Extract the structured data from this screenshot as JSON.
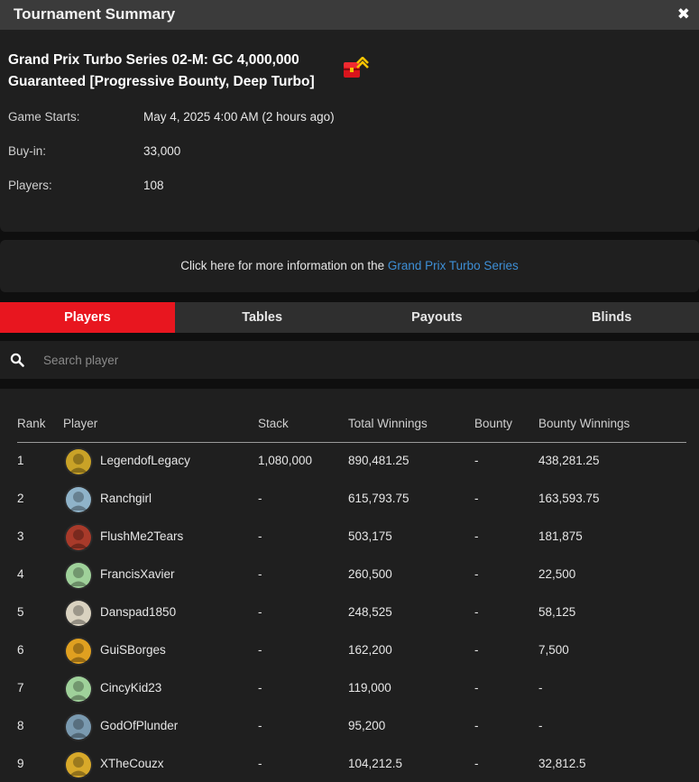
{
  "window": {
    "title": "Tournament Summary",
    "close_label": "✖"
  },
  "tournament": {
    "name": "Grand Prix Turbo Series 02-M: GC 4,000,000 Guaranteed [Progressive Bounty, Deep Turbo]",
    "info": [
      {
        "label": "Game Starts:",
        "value": "May 4, 2025 4:00 AM (2 hours ago)"
      },
      {
        "label": "Buy-in:",
        "value": "33,000"
      },
      {
        "label": "Players:",
        "value": "108"
      }
    ]
  },
  "more_info": {
    "text": "Click here for more information on the ",
    "link": "Grand Prix Turbo Series"
  },
  "tabs": [
    {
      "label": "Players",
      "active": true
    },
    {
      "label": "Tables",
      "active": false
    },
    {
      "label": "Payouts",
      "active": false
    },
    {
      "label": "Blinds",
      "active": false
    }
  ],
  "search": {
    "placeholder": "Search player",
    "value": ""
  },
  "table": {
    "headers": [
      "Rank",
      "Player",
      "Stack",
      "Total Winnings",
      "Bounty",
      "Bounty Winnings"
    ],
    "rows": [
      {
        "rank": "1",
        "player": "LegendofLegacy",
        "stack": "1,080,000",
        "total": "890,481.25",
        "bounty": "-",
        "bounty_winnings": "438,281.25",
        "avatar_color": "#c9a227"
      },
      {
        "rank": "2",
        "player": "Ranchgirl",
        "stack": "-",
        "total": "615,793.75",
        "bounty": "-",
        "bounty_winnings": "163,593.75",
        "avatar_color": "#8fb3c9"
      },
      {
        "rank": "3",
        "player": "FlushMe2Tears",
        "stack": "-",
        "total": "503,175",
        "bounty": "-",
        "bounty_winnings": "181,875",
        "avatar_color": "#a83a2a"
      },
      {
        "rank": "4",
        "player": "FrancisXavier",
        "stack": "-",
        "total": "260,500",
        "bounty": "-",
        "bounty_winnings": "22,500",
        "avatar_color": "#9fd19a"
      },
      {
        "rank": "5",
        "player": "Danspad1850",
        "stack": "-",
        "total": "248,525",
        "bounty": "-",
        "bounty_winnings": "58,125",
        "avatar_color": "#d9d2c0"
      },
      {
        "rank": "6",
        "player": "GuiSBorges",
        "stack": "-",
        "total": "162,200",
        "bounty": "-",
        "bounty_winnings": "7,500",
        "avatar_color": "#e0a020"
      },
      {
        "rank": "7",
        "player": "CincyKid23",
        "stack": "-",
        "total": "119,000",
        "bounty": "-",
        "bounty_winnings": "-",
        "avatar_color": "#9fd19a"
      },
      {
        "rank": "8",
        "player": "GodOfPlunder",
        "stack": "-",
        "total": "95,200",
        "bounty": "-",
        "bounty_winnings": "-",
        "avatar_color": "#7a9ab0"
      },
      {
        "rank": "9",
        "player": "XTheCouzx",
        "stack": "-",
        "total": "104,212.5",
        "bounty": "-",
        "bounty_winnings": "32,812.5",
        "avatar_color": "#d8a92a"
      }
    ]
  },
  "colors": {
    "accent": "#e8161f",
    "link": "#3e8fd6",
    "panel": "#1f1f1f",
    "titlebar": "#3b3b3b"
  }
}
